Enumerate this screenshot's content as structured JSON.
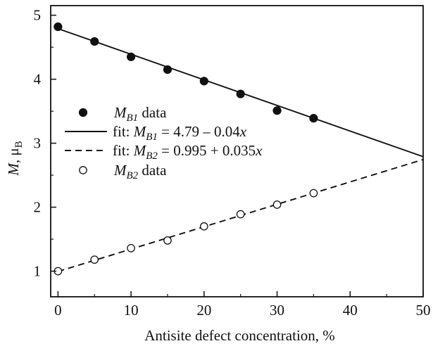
{
  "chart_data": {
    "type": "scatter",
    "xlabel": "Antisite defect concentration, %",
    "ylabel": {
      "symbol": "M",
      "unit": "μ",
      "unit_sub": "B"
    },
    "xlim": [
      -1,
      50
    ],
    "ylim": [
      0.6,
      5.15
    ],
    "xticks": [
      0,
      10,
      20,
      30,
      40,
      50
    ],
    "yticks": [
      1,
      2,
      3,
      4,
      5
    ],
    "grid": false,
    "legend_position": "center-left",
    "series": [
      {
        "key": "mb1-data",
        "kind": "points",
        "marker": "filled-circle",
        "x": [
          0,
          5,
          10,
          15,
          20,
          25,
          30,
          35
        ],
        "y": [
          4.82,
          4.59,
          4.35,
          4.15,
          3.97,
          3.77,
          3.51,
          3.39
        ],
        "legend": {
          "pre": "",
          "sym": "M",
          "sub": "B1",
          "post": " data"
        }
      },
      {
        "key": "mb1-fit",
        "kind": "line",
        "style": "solid",
        "x": [
          0,
          50
        ],
        "y": [
          4.79,
          2.79
        ],
        "legend": {
          "pre": "fit: ",
          "sym": "M",
          "sub": "B1",
          "post": " = 4.79 – 0.04",
          "var": "x"
        }
      },
      {
        "key": "mb2-fit",
        "kind": "line",
        "style": "dashed",
        "x": [
          0,
          50
        ],
        "y": [
          0.995,
          2.745
        ],
        "legend": {
          "pre": "fit: ",
          "sym": "M",
          "sub": "B2",
          "post": " = 0.995 + 0.035",
          "var": "x"
        }
      },
      {
        "key": "mb2-data",
        "kind": "points",
        "marker": "open-circle",
        "x": [
          0,
          5,
          10,
          15,
          20,
          25,
          30,
          35
        ],
        "y": [
          1.0,
          1.18,
          1.36,
          1.48,
          1.7,
          1.89,
          2.04,
          2.22
        ],
        "legend": {
          "pre": "",
          "sym": "M",
          "sub": "B2",
          "post": " data"
        }
      }
    ]
  }
}
